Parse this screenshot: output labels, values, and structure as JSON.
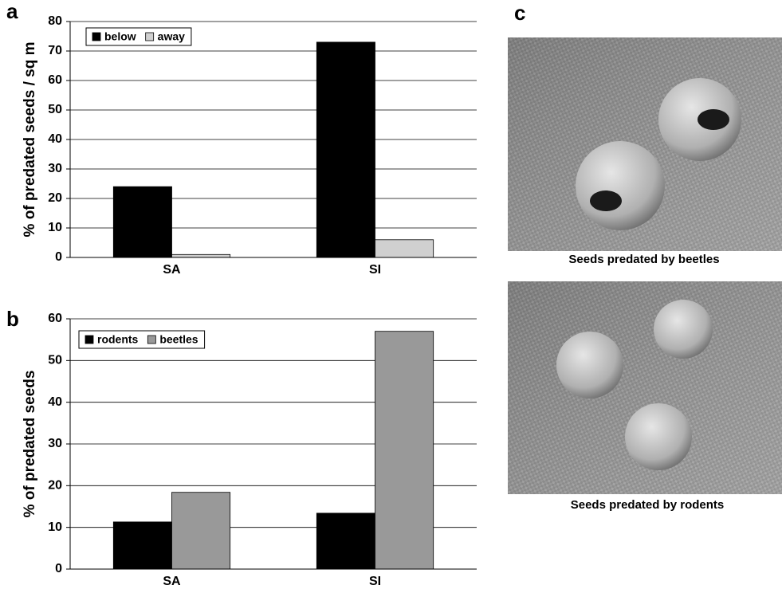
{
  "chart_data": [
    {
      "type": "bar",
      "panel": "a",
      "ylabel": "% of predated seeds / sq m",
      "categories": [
        "SA",
        "SI"
      ],
      "series": [
        {
          "name": "below",
          "color": "#000000",
          "values": [
            24,
            73
          ]
        },
        {
          "name": "away",
          "color": "#d0d0d0",
          "values": [
            1,
            6
          ]
        }
      ],
      "ylim": [
        0,
        80
      ],
      "yticks": [
        0,
        10,
        20,
        30,
        40,
        50,
        60,
        70,
        80
      ],
      "grid": true,
      "legend": "upper-left"
    },
    {
      "type": "bar",
      "panel": "b",
      "ylabel": "% of predated seeds",
      "categories": [
        "SA",
        "SI"
      ],
      "series": [
        {
          "name": "rodents",
          "color": "#000000",
          "values": [
            11.3,
            13.4
          ]
        },
        {
          "name": "beetles",
          "color": "#999999",
          "values": [
            18.4,
            57
          ]
        }
      ],
      "ylim": [
        0,
        60
      ],
      "yticks": [
        0,
        10,
        20,
        30,
        40,
        50,
        60
      ],
      "grid": true,
      "legend": "upper-left"
    }
  ],
  "panel_c": {
    "panel": "c",
    "captions": [
      "Seeds predated by beetles",
      "Seeds predated by rodents"
    ]
  }
}
